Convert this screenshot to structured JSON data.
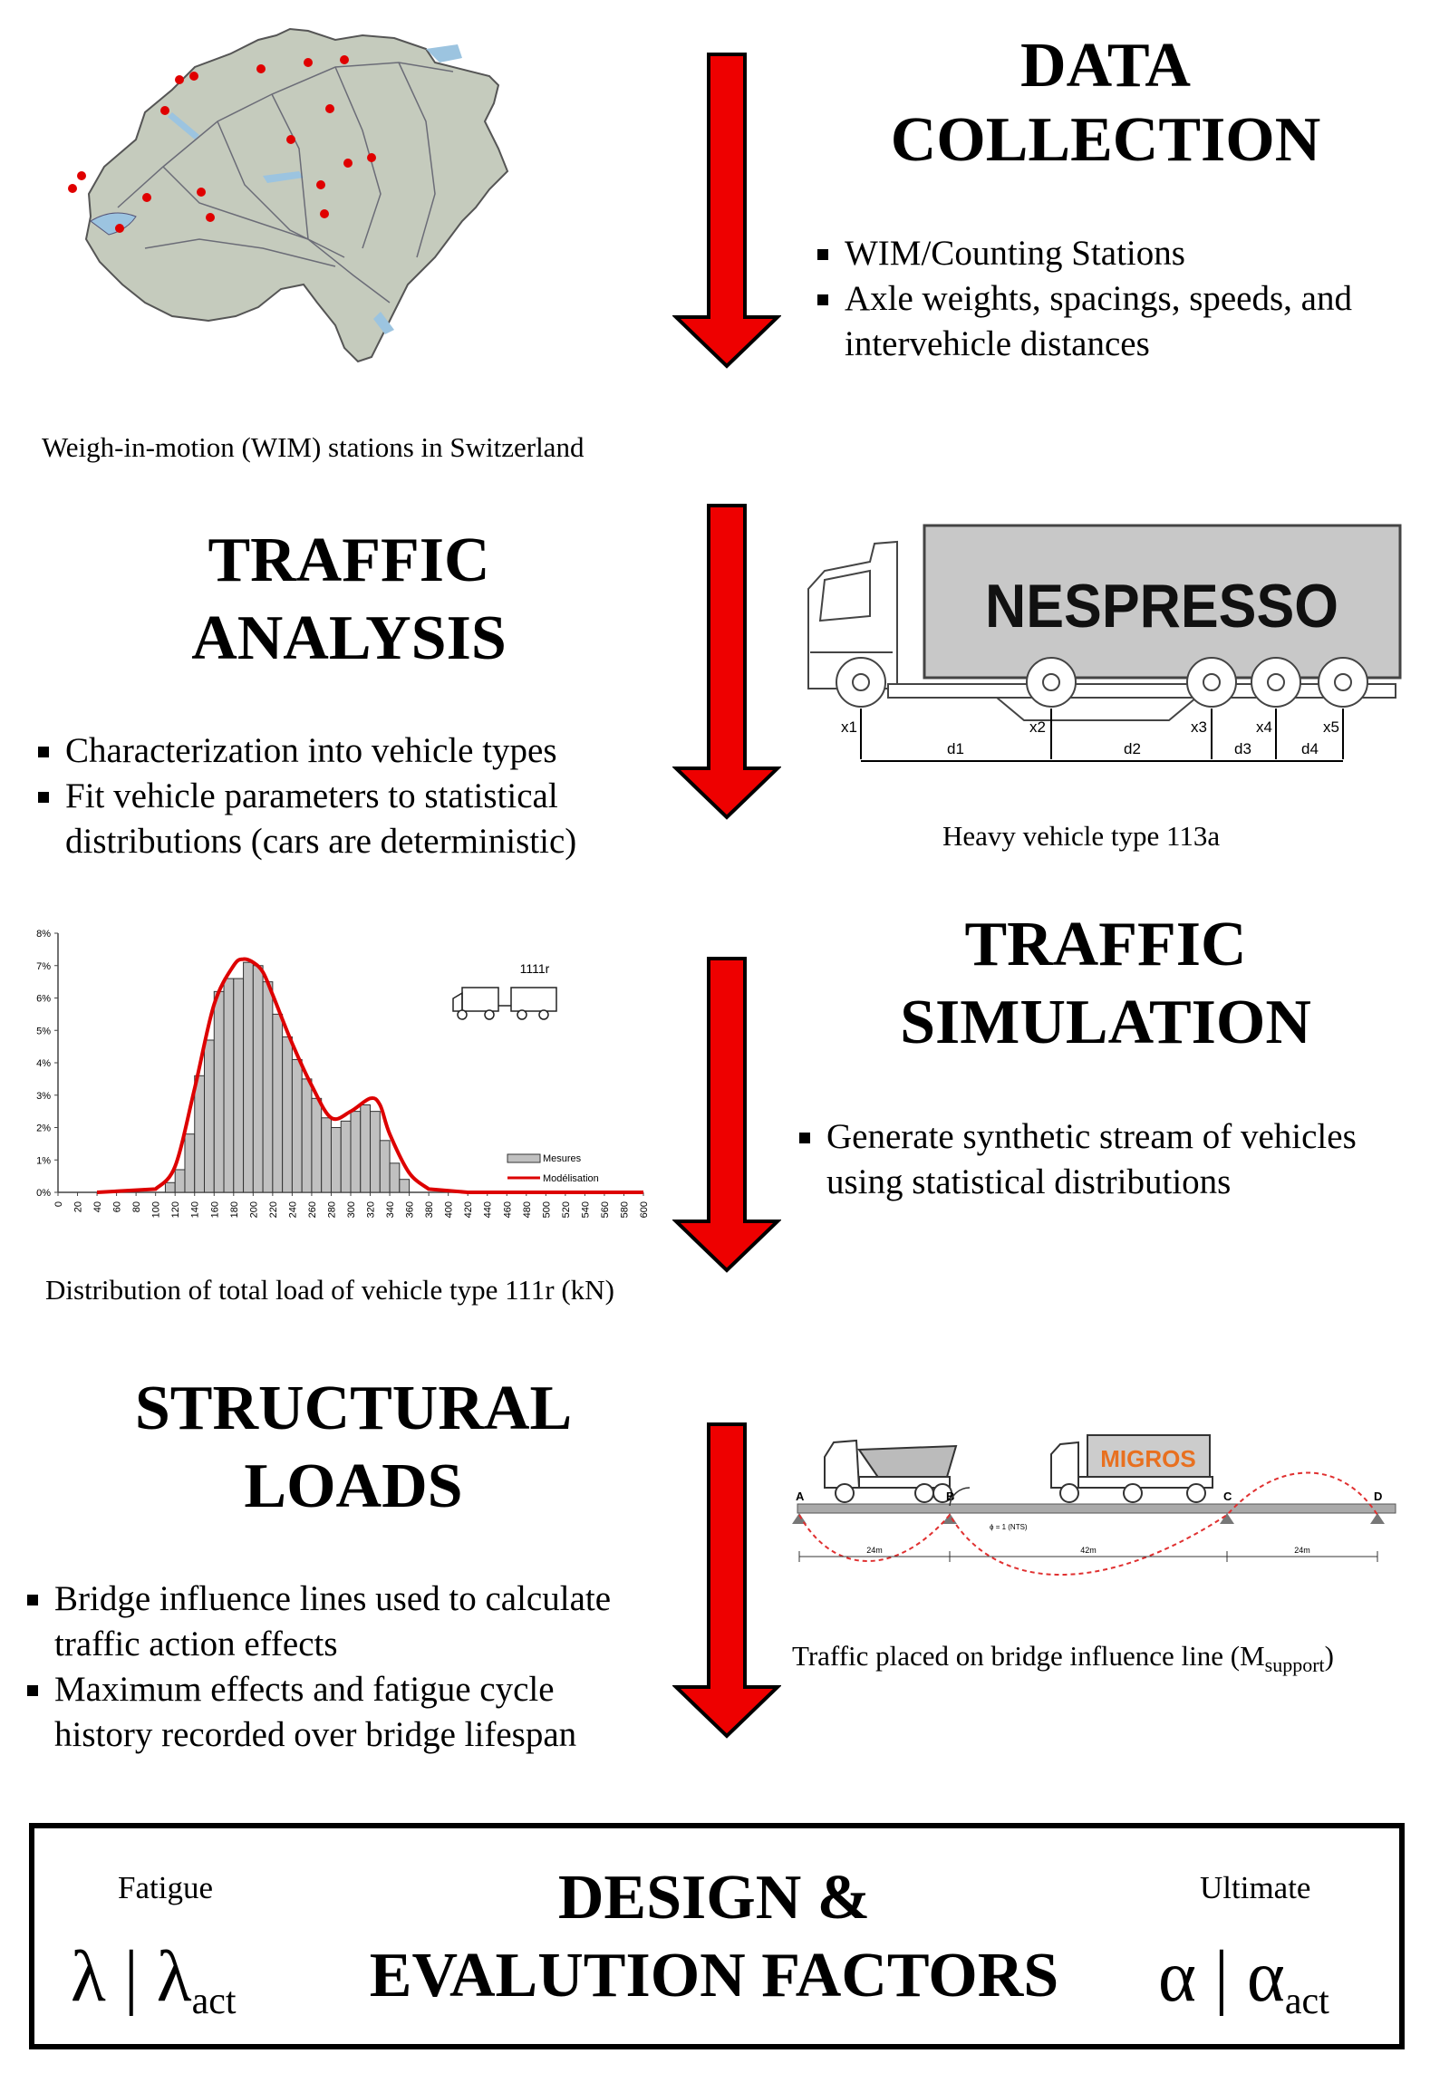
{
  "data_collection": {
    "title_line1": "DATA",
    "title_line2": "COLLECTION",
    "bullets": [
      "WIM/Counting Stations",
      "Axle weights, spacings, speeds, and",
      "intervehicle distances"
    ],
    "caption": "Weigh-in-motion (WIM) stations in Switzerland"
  },
  "traffic_analysis": {
    "title_line1": "TRAFFIC",
    "title_line2": "ANALYSIS",
    "bullets": [
      "Characterization into vehicle types",
      "Fit vehicle parameters to statistical",
      "distributions (cars are deterministic)"
    ],
    "truck_brand": "NESPRESSO",
    "axle_labels": [
      "x1",
      "x2",
      "x3",
      "x4",
      "x5"
    ],
    "spacing_labels": [
      "d1",
      "d2",
      "d3",
      "d4"
    ],
    "caption": "Heavy vehicle type 113a"
  },
  "traffic_simulation": {
    "title_line1": "TRAFFIC",
    "title_line2": "SIMULATION",
    "bullets": [
      "Generate synthetic stream of vehicles",
      "using statistical distributions"
    ],
    "caption": "Distribution of total load of vehicle type 111r (kN)"
  },
  "structural_loads": {
    "title_line1": "STRUCTURAL",
    "title_line2": "LOADS",
    "bullets": [
      "Bridge influence lines used to calculate",
      "traffic action effects",
      "Maximum effects and fatigue cycle",
      "history recorded over bridge lifespan"
    ],
    "truck_brand": "MIGROS",
    "support_labels": [
      "A",
      "B",
      "C",
      "D"
    ],
    "span_labels": [
      "24m",
      "42m",
      "24m"
    ],
    "unit_label": "ϕ = 1 (NTS)",
    "caption_main": "Traffic placed on bridge influence line (M",
    "caption_sub": "support",
    "caption_end": ")"
  },
  "design": {
    "title_line1": "DESIGN &",
    "title_line2": "EVALUTION FACTORS",
    "fatigue_label": "Fatigue",
    "fatigue_symbol": "λ | λ",
    "fatigue_sub": "act",
    "ultimate_label": "Ultimate",
    "ultimate_symbol": "α | α",
    "ultimate_sub": "act"
  },
  "colors": {
    "arrow": "#ee0000",
    "chart_curve": "#dd0000",
    "bar": "#c0c0c0"
  },
  "chart_data": {
    "type": "bar",
    "title": "1111r",
    "xlabel": "",
    "ylabel": "",
    "ylim": [
      0,
      8
    ],
    "y_ticks": [
      "0%",
      "1%",
      "2%",
      "3%",
      "4%",
      "5%",
      "6%",
      "7%",
      "8%"
    ],
    "x_ticks": [
      "0",
      "20",
      "40",
      "60",
      "80",
      "100",
      "120",
      "140",
      "160",
      "180",
      "200",
      "220",
      "240",
      "260",
      "280",
      "300",
      "320",
      "340",
      "360",
      "380",
      "400",
      "420",
      "440",
      "460",
      "480",
      "500",
      "520",
      "540",
      "560",
      "580",
      "600"
    ],
    "bin_width": 10,
    "bins": [
      110,
      120,
      130,
      140,
      150,
      160,
      170,
      180,
      190,
      200,
      210,
      220,
      230,
      240,
      250,
      260,
      270,
      280,
      290,
      300,
      310,
      320,
      330,
      340,
      350
    ],
    "values": [
      0.3,
      0.7,
      1.8,
      3.6,
      4.7,
      6.2,
      6.6,
      6.6,
      7.1,
      7.0,
      6.5,
      5.5,
      4.8,
      4.1,
      3.5,
      2.9,
      2.3,
      2.0,
      2.2,
      2.5,
      2.7,
      2.5,
      1.6,
      0.9,
      0.4
    ],
    "series": [
      {
        "name": "Mesures",
        "type": "bar"
      },
      {
        "name": "Modélisation",
        "type": "line",
        "x": [
          100,
          120,
          140,
          160,
          180,
          190,
          200,
          210,
          220,
          240,
          260,
          280,
          300,
          320,
          330,
          340,
          360,
          380
        ],
        "values": [
          0.1,
          0.8,
          3.2,
          5.8,
          7.0,
          7.2,
          7.1,
          6.8,
          6.1,
          4.6,
          3.3,
          2.3,
          2.5,
          2.9,
          2.7,
          1.8,
          0.6,
          0.1
        ]
      }
    ],
    "legend": [
      "Mesures",
      "Modélisation"
    ]
  }
}
